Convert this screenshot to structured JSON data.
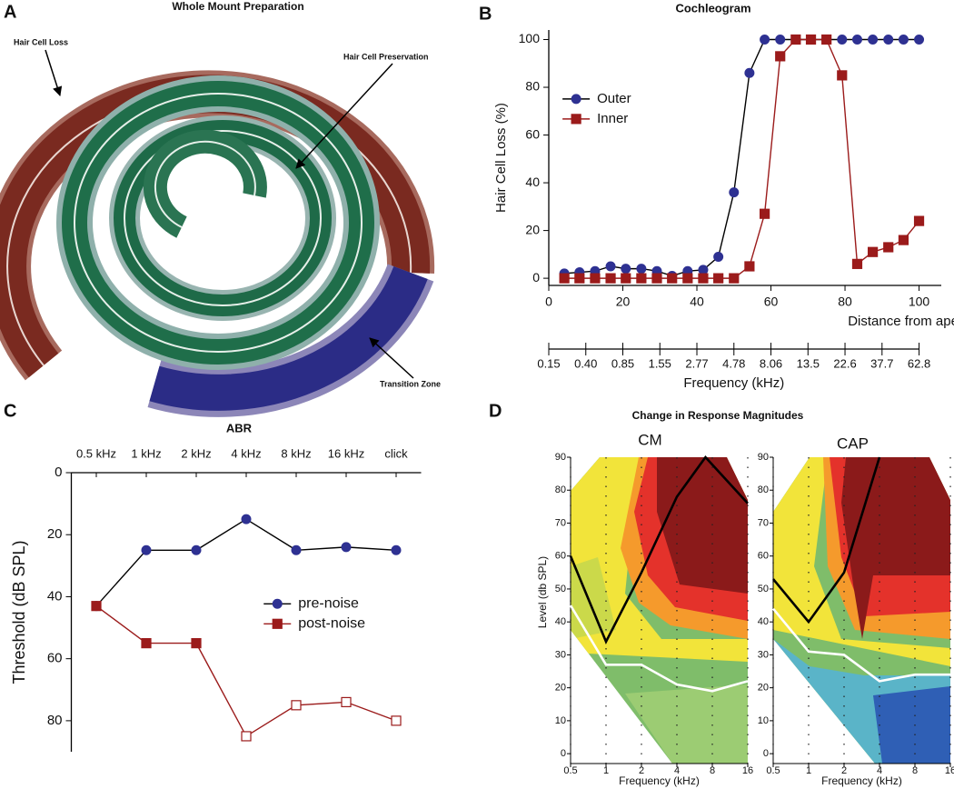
{
  "panel_labels": [
    "A",
    "B",
    "C",
    "D"
  ],
  "image_panel": {
    "title": "Whole Mount Preparation",
    "annotations": [
      "Hair Cell Loss",
      "Hair Cell Preservation",
      "Transition Zone"
    ]
  },
  "panel_d_title": "Change in Response Magnitudes",
  "chart_data": [
    {
      "type": "line",
      "title": "Cochleogram",
      "x_label": "Distance from apex (%)",
      "y_label": "Hair Cell Loss (%)",
      "x": [
        4.2,
        8.3,
        12.5,
        16.7,
        20.8,
        25,
        29.2,
        33.3,
        37.5,
        41.7,
        45.8,
        50,
        54.2,
        58.3,
        62.5,
        66.7,
        70.8,
        75,
        79.2,
        83.3,
        87.5,
        91.7,
        95.8,
        100
      ],
      "series": [
        {
          "name": "Outer",
          "color": "#2e3192",
          "line_color": "#000000",
          "marker": "circle",
          "values": [
            2,
            2.5,
            3,
            5,
            4,
            4,
            3,
            1,
            3,
            3.5,
            9,
            36,
            86,
            100,
            100,
            100,
            100,
            100,
            100,
            100,
            100,
            100,
            100,
            100
          ]
        },
        {
          "name": "Inner",
          "color": "#9b1b1b",
          "line_color": "#9b1b1b",
          "marker": "square",
          "values": [
            0,
            0,
            0,
            0,
            0,
            0,
            0,
            0,
            0,
            0,
            0,
            0,
            5,
            27,
            93,
            100,
            100,
            100,
            85,
            6,
            11,
            13,
            16,
            24
          ]
        }
      ],
      "xlim": [
        0,
        106
      ],
      "xticks": [
        0,
        20,
        40,
        60,
        80,
        100
      ],
      "ylim": [
        -3,
        104
      ],
      "yticks": [
        0,
        20,
        40,
        60,
        80,
        100
      ],
      "legend": "upper left",
      "secondary_x_axis": {
        "label": "Frequency (kHz)",
        "ticks": [
          {
            "value": 0,
            "label": "0.15"
          },
          {
            "value": 10,
            "label": "0.40"
          },
          {
            "value": 20,
            "label": "0.85"
          },
          {
            "value": 30,
            "label": "1.55"
          },
          {
            "value": 40,
            "label": "2.77"
          },
          {
            "value": 50,
            "label": "4.78"
          },
          {
            "value": 60,
            "label": "8.06"
          },
          {
            "value": 70,
            "label": "13.5"
          },
          {
            "value": 80,
            "label": "22.6"
          },
          {
            "value": 90,
            "label": "37.7"
          },
          {
            "value": 100,
            "label": "62.8"
          }
        ]
      }
    },
    {
      "type": "line",
      "title": "ABR",
      "y_label": "Threshold (dB SPL)",
      "categories": [
        "0.5 kHz",
        "1 kHz",
        "2 kHz",
        "4 kHz",
        "8 kHz",
        "16 kHz",
        "click"
      ],
      "series": [
        {
          "name": "pre-noise",
          "color": "#2e3192",
          "line_color": "#000000",
          "marker": "circle",
          "values": [
            43,
            25,
            25,
            15,
            25,
            24,
            25
          ]
        },
        {
          "name": "post-noise",
          "color": "#9b1b1b",
          "line_color": "#9b1b1b",
          "marker": "square",
          "filled": [
            true,
            true,
            true,
            false,
            false,
            false,
            false
          ],
          "values": [
            43,
            55,
            55,
            85,
            75,
            74,
            80
          ]
        }
      ],
      "ylim": [
        0,
        90
      ],
      "yticks": [
        0,
        20,
        40,
        60,
        80
      ],
      "y_inverted": true,
      "x_axis_position": "top",
      "legend": "center right"
    },
    {
      "type": "contour",
      "title": "CM",
      "x_label": "Frequency (kHz)",
      "y_label": "Level (db SPL)",
      "xscale": "log",
      "xlim": [
        0.5,
        16
      ],
      "xticks": [
        0.5,
        1,
        2,
        4,
        8,
        16
      ],
      "ylim": [
        -3,
        90
      ],
      "yticks": [
        0,
        10,
        20,
        30,
        40,
        50,
        60,
        70,
        80,
        90
      ],
      "series": [
        {
          "color": "#000000",
          "x": [
            0.5,
            1,
            2,
            4,
            7,
            16
          ],
          "values": [
            60,
            34,
            55,
            78,
            90,
            76
          ]
        },
        {
          "color": "#ffffff",
          "x": [
            0.5,
            1,
            2,
            4,
            8,
            16
          ],
          "values": [
            45,
            27,
            27,
            21,
            19,
            22
          ]
        }
      ]
    },
    {
      "type": "contour",
      "title": "CAP",
      "x_label": "Frequency (kHz)",
      "xscale": "log",
      "xlim": [
        0.5,
        16
      ],
      "xticks": [
        0.5,
        1,
        2,
        4,
        8,
        16
      ],
      "ylim": [
        -3,
        90
      ],
      "yticks": [
        0,
        10,
        20,
        30,
        40,
        50,
        60,
        70,
        80,
        90
      ],
      "series": [
        {
          "color": "#000000",
          "x": [
            0.5,
            1,
            2,
            4
          ],
          "values": [
            53,
            40,
            55,
            90
          ]
        },
        {
          "color": "#ffffff",
          "x": [
            0.5,
            1,
            2,
            4,
            8,
            16
          ],
          "values": [
            44,
            31,
            30,
            22,
            24,
            24
          ]
        }
      ]
    }
  ]
}
